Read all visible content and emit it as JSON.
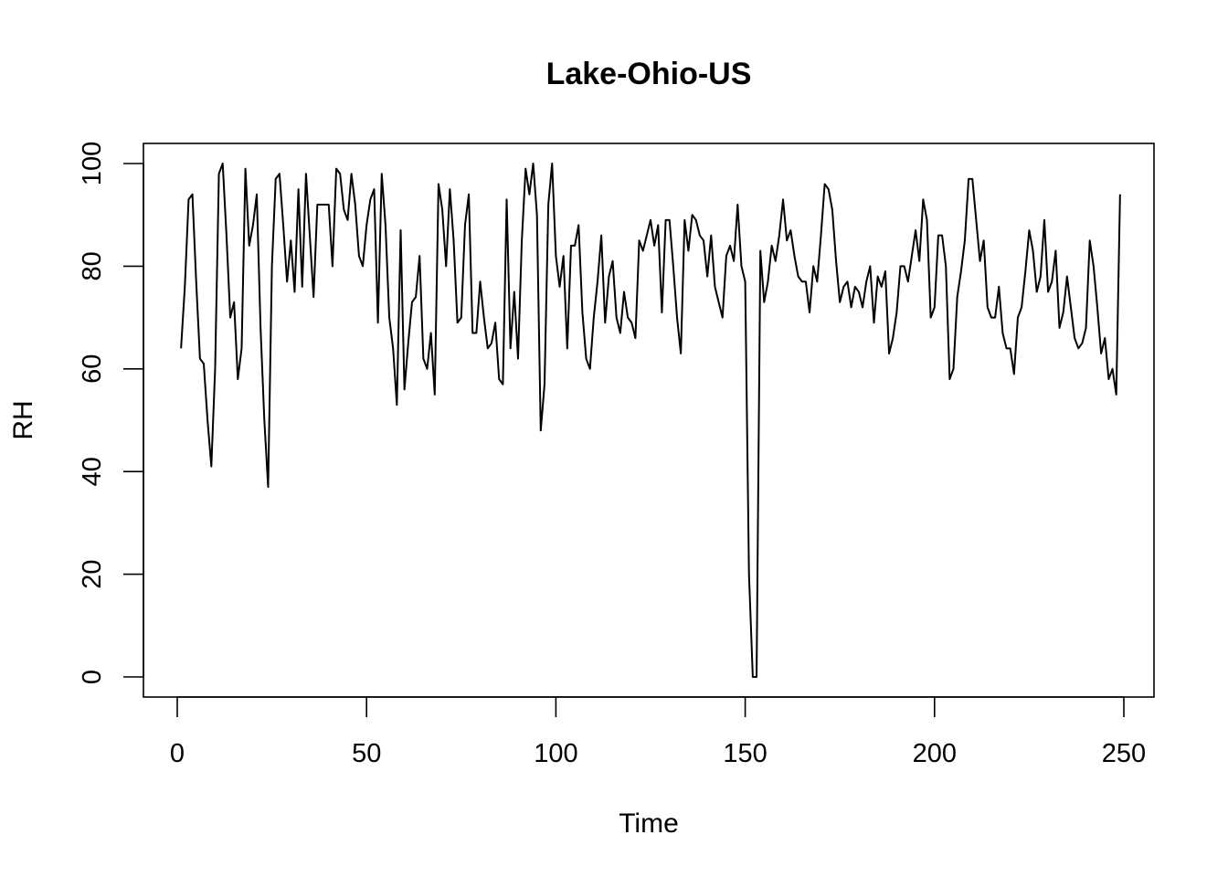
{
  "chart_data": {
    "type": "line",
    "title": "Lake-Ohio-US",
    "xlabel": "Time",
    "ylabel": "RH",
    "xlim": [
      1,
      248
    ],
    "ylim": [
      0,
      100
    ],
    "grid": false,
    "x_ticks": [
      0,
      50,
      100,
      150,
      200,
      250
    ],
    "y_ticks": [
      0,
      20,
      40,
      60,
      80,
      100
    ],
    "x_tick_labels": [
      "0",
      "50",
      "100",
      "150",
      "200",
      "250"
    ],
    "y_tick_labels": [
      "0",
      "20",
      "40",
      "60",
      "80",
      "100"
    ],
    "series": [
      {
        "values": [
          64,
          76,
          93,
          94,
          77,
          62,
          61,
          50,
          41,
          60,
          98,
          100,
          86,
          70,
          73,
          58,
          64,
          99,
          84,
          88,
          94,
          68,
          50,
          37,
          80,
          97,
          98,
          88,
          77,
          85,
          75,
          95,
          76,
          98,
          86,
          74,
          92,
          92,
          92,
          92,
          80,
          99,
          98,
          91,
          89,
          98,
          92,
          82,
          80,
          88,
          93,
          95,
          69,
          98,
          88,
          70,
          64,
          53,
          87,
          56,
          65,
          73,
          74,
          82,
          62,
          60,
          67,
          55,
          96,
          91,
          80,
          95,
          85,
          69,
          70,
          88,
          94,
          67,
          67,
          77,
          70,
          64,
          65,
          69,
          58,
          57,
          93,
          64,
          75,
          62,
          85,
          99,
          94,
          100,
          90,
          48,
          57,
          92,
          100,
          82,
          76,
          82,
          64,
          84,
          84,
          88,
          71,
          62,
          60,
          70,
          77,
          86,
          69,
          78,
          81,
          70,
          67,
          75,
          70,
          69,
          66,
          85,
          83,
          86,
          89,
          84,
          88,
          71,
          89,
          89,
          80,
          70,
          63,
          89,
          83,
          90,
          89,
          86,
          85,
          78,
          86,
          76,
          73,
          70,
          82,
          84,
          81,
          92,
          80,
          77,
          20,
          0,
          0,
          83,
          73,
          77,
          84,
          81,
          86,
          93,
          85,
          87,
          82,
          78,
          77,
          77,
          71,
          80,
          77,
          86,
          96,
          95,
          91,
          81,
          73,
          76,
          77,
          72,
          76,
          75,
          72,
          77,
          80,
          69,
          78,
          76,
          79,
          63,
          66,
          71,
          80,
          80,
          77,
          82,
          87,
          81,
          93,
          89,
          70,
          72,
          86,
          86,
          80,
          58,
          60,
          74,
          79,
          85,
          97,
          97,
          89,
          81,
          85,
          72,
          70,
          70,
          76,
          67,
          64,
          64,
          59,
          70,
          72,
          79,
          87,
          83,
          75,
          78,
          89,
          75,
          77,
          83,
          68,
          71,
          78,
          72,
          66,
          64,
          65,
          68,
          85,
          80,
          72,
          63,
          66,
          58,
          60,
          55,
          94
        ]
      }
    ]
  }
}
